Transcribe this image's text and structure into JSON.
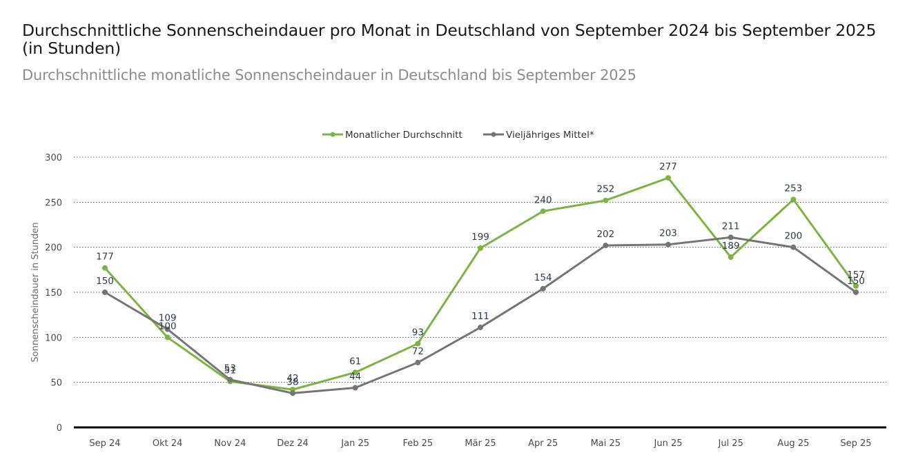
{
  "header": {
    "title": "Durchschnittliche Sonnenscheindauer pro Monat in Deutschland von September 2024 bis September 2025 (in Stunden)",
    "subtitle": "Durchschnittliche monatliche Sonnenscheindauer in Deutschland bis September 2025"
  },
  "chart_data": {
    "type": "line",
    "title": "Durchschnittliche Sonnenscheindauer pro Monat in Deutschland von September 2024 bis September 2025 (in Stunden)",
    "subtitle": "Durchschnittliche monatliche Sonnenscheindauer in Deutschland bis September 2025",
    "xlabel": "",
    "ylabel": "Sonnenscheindauer in Stunden",
    "ylim": [
      0,
      300
    ],
    "yticks": [
      0,
      50,
      100,
      150,
      200,
      250,
      300
    ],
    "grid": true,
    "legend_position": "top-center",
    "categories": [
      "Sep 24",
      "Okt 24",
      "Nov 24",
      "Dez 24",
      "Jan 25",
      "Feb 25",
      "Mär 25",
      "Apr 25",
      "Mai 25",
      "Jun 25",
      "Jul 25",
      "Aug 25",
      "Sep 25"
    ],
    "series": [
      {
        "name": "Monatlicher Durchschnitt",
        "color": "#7cb342",
        "values": [
          177,
          100,
          51,
          42,
          61,
          93,
          199,
          240,
          252,
          277,
          189,
          253,
          157
        ]
      },
      {
        "name": "Vieljähriges Mittel*",
        "color": "#757575",
        "values": [
          150,
          109,
          53,
          38,
          44,
          72,
          111,
          154,
          202,
          203,
          211,
          200,
          150
        ]
      }
    ]
  }
}
